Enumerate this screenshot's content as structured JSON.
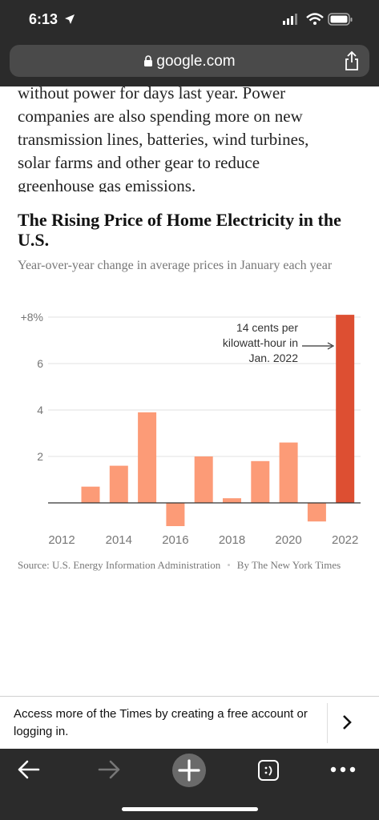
{
  "status_bar": {
    "time": "6:13"
  },
  "browser": {
    "url": "google.com"
  },
  "article": {
    "lines": [
      "without power for days last year. Power",
      "companies are also spending more on new",
      "transmission lines, batteries, wind turbines,",
      "solar farms and other gear to reduce",
      "greenhouse gas emissions."
    ]
  },
  "chart_data": {
    "type": "bar",
    "title": "The Rising Price of Home Electricity in the U.S.",
    "subtitle": "Year-over-year change in average prices in January each year",
    "categories": [
      "2012",
      "2013",
      "2014",
      "2015",
      "2016",
      "2017",
      "2018",
      "2019",
      "2020",
      "2021",
      "2022"
    ],
    "values": [
      0,
      0.7,
      1.6,
      3.9,
      -1.0,
      2.0,
      0.2,
      1.8,
      2.6,
      -0.8,
      8.1
    ],
    "highlight": "2022",
    "colors": {
      "bar": "#fc9b77",
      "highlight": "#dd4f32",
      "grid": "#e2e2e2",
      "axis": "#333333",
      "label": "#777777"
    },
    "ylim": [
      -1.2,
      8
    ],
    "y_ticks": [
      {
        "value": 8,
        "label": "+8%"
      },
      {
        "value": 6,
        "label": "6"
      },
      {
        "value": 4,
        "label": "4"
      },
      {
        "value": 2,
        "label": "2"
      }
    ],
    "x_tick_labels": [
      "2012",
      "2014",
      "2016",
      "2018",
      "2020",
      "2022"
    ],
    "annotation": {
      "lines": [
        "14 cents per",
        "kilowatt-hour in",
        "Jan. 2022"
      ],
      "target": "2022"
    },
    "grid": true
  },
  "source": {
    "text": "Source: U.S. Energy Information Administration",
    "byline": "By The New York Times"
  },
  "banner": {
    "text": "Access more of the Times by creating a free account or logging in."
  }
}
